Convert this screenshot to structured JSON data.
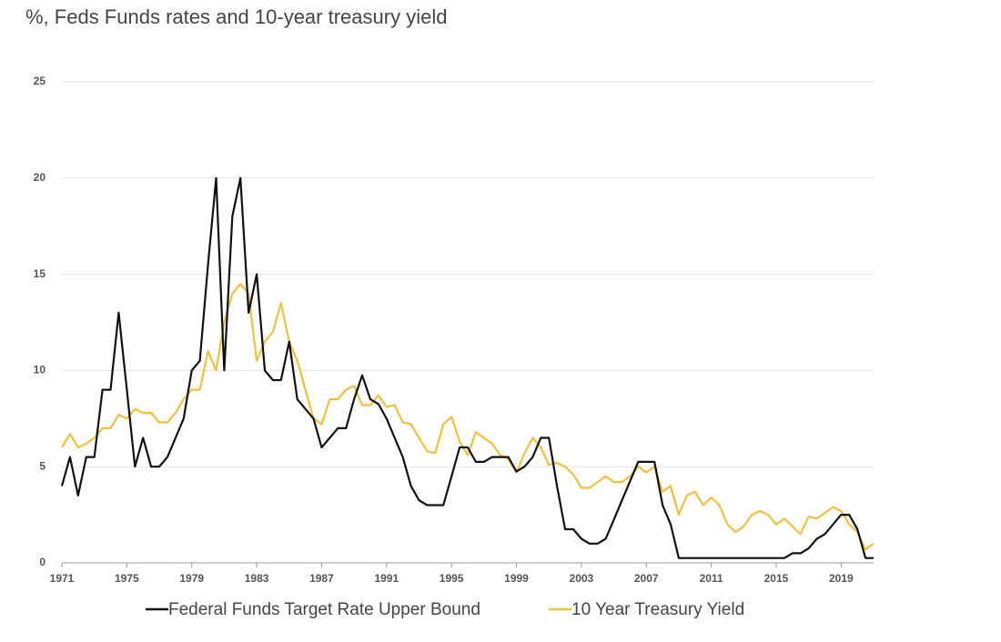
{
  "chart_data": {
    "type": "line",
    "title": "%, Feds Funds rates and 10-year treasury yield",
    "x": [
      1971,
      1971.5,
      1972,
      1972.5,
      1973,
      1973.5,
      1974,
      1974.5,
      1975,
      1975.5,
      1976,
      1976.5,
      1977,
      1977.5,
      1978,
      1978.5,
      1979,
      1979.5,
      1980,
      1980.5,
      1981,
      1981.5,
      1982,
      1982.5,
      1983,
      1983.5,
      1984,
      1984.5,
      1985,
      1985.5,
      1986,
      1986.5,
      1987,
      1987.5,
      1988,
      1988.5,
      1989,
      1989.5,
      1990,
      1990.5,
      1991,
      1991.5,
      1992,
      1992.5,
      1993,
      1993.5,
      1994,
      1994.5,
      1995,
      1995.5,
      1996,
      1996.5,
      1997,
      1997.5,
      1998,
      1998.5,
      1999,
      1999.5,
      2000,
      2000.5,
      2001,
      2001.5,
      2002,
      2002.5,
      2003,
      2003.5,
      2004,
      2004.5,
      2005,
      2005.5,
      2006,
      2006.5,
      2007,
      2007.5,
      2008,
      2008.5,
      2009,
      2009.5,
      2010,
      2010.5,
      2011,
      2011.5,
      2012,
      2012.5,
      2013,
      2013.5,
      2014,
      2014.5,
      2015,
      2015.5,
      2016,
      2016.5,
      2017,
      2017.5,
      2018,
      2018.5,
      2019,
      2019.5,
      2020,
      2020.5,
      2021
    ],
    "series": [
      {
        "name": "Federal Funds Target Rate Upper Bound",
        "color": "#111111",
        "values": [
          4,
          5.5,
          3.5,
          5.5,
          5.5,
          9,
          9,
          13,
          9,
          5,
          6.5,
          5,
          5,
          5.5,
          6.5,
          7.5,
          10,
          10.5,
          15.5,
          20,
          10,
          18,
          20,
          13,
          15,
          10,
          9.5,
          9.5,
          11.5,
          8.5,
          8,
          7.5,
          6,
          6.5,
          7,
          7,
          8.5,
          9.75,
          8.5,
          8.25,
          7.5,
          6.5,
          5.5,
          4,
          3.25,
          3,
          3,
          3,
          4.5,
          6,
          6,
          5.25,
          5.25,
          5.5,
          5.5,
          5.5,
          4.75,
          5,
          5.5,
          6.5,
          6.5,
          4,
          1.75,
          1.75,
          1.25,
          1,
          1,
          1.25,
          2.25,
          3.25,
          4.25,
          5.25,
          5.25,
          5.25,
          3,
          2,
          0.25,
          0.25,
          0.25,
          0.25,
          0.25,
          0.25,
          0.25,
          0.25,
          0.25,
          0.25,
          0.25,
          0.25,
          0.25,
          0.25,
          0.5,
          0.5,
          0.75,
          1.25,
          1.5,
          2,
          2.5,
          2.5,
          1.75,
          0.25,
          0.25
        ]
      },
      {
        "name": "10 Year Treasury Yield",
        "color": "#f0c040",
        "values": [
          6,
          6.7,
          6,
          6.2,
          6.5,
          7,
          7,
          7.7,
          7.5,
          8,
          7.8,
          7.8,
          7.3,
          7.3,
          7.8,
          8.5,
          9,
          9,
          11,
          10,
          12.5,
          14,
          14.5,
          14,
          10.5,
          11.5,
          12,
          13.5,
          11.5,
          10.5,
          9,
          7.5,
          7.2,
          8.5,
          8.5,
          9,
          9.2,
          8.2,
          8.2,
          8.7,
          8.1,
          8.2,
          7.3,
          7.2,
          6.5,
          5.8,
          5.7,
          7.2,
          7.6,
          6.3,
          5.6,
          6.8,
          6.5,
          6.2,
          5.6,
          5.4,
          4.7,
          5.7,
          6.5,
          6,
          5.1,
          5.2,
          5,
          4.6,
          3.9,
          3.9,
          4.2,
          4.5,
          4.2,
          4.2,
          4.5,
          5,
          4.7,
          5,
          3.7,
          4,
          2.5,
          3.5,
          3.7,
          3,
          3.4,
          3,
          2,
          1.6,
          1.9,
          2.5,
          2.7,
          2.5,
          2,
          2.3,
          1.9,
          1.5,
          2.4,
          2.3,
          2.6,
          2.9,
          2.7,
          2,
          1.6,
          0.7,
          1
        ]
      }
    ],
    "xlim": [
      1971,
      2021
    ],
    "xticks": [
      1971,
      1975,
      1979,
      1983,
      1987,
      1991,
      1995,
      1999,
      2003,
      2007,
      2011,
      2015,
      2019
    ],
    "ylim": [
      0,
      25
    ],
    "yticks": [
      0,
      5,
      10,
      15,
      20,
      25
    ],
    "grid": true
  }
}
